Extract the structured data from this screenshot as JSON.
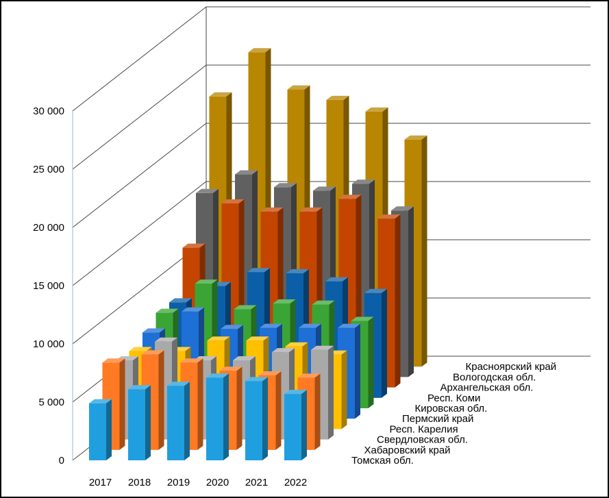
{
  "chart_data": {
    "type": "bar",
    "subtype": "3d-column",
    "title": "",
    "xlabel": "",
    "ylabel": "",
    "categories": [
      "2017",
      "2018",
      "2019",
      "2020",
      "2021",
      "2022"
    ],
    "yticks": [
      "0",
      "5 000",
      "10 000",
      "15 000",
      "20 000",
      "25 000",
      "30 000"
    ],
    "ylim": [
      0,
      30000
    ],
    "series": [
      {
        "name": "Томская обл.",
        "color": "#1f9fdf",
        "values": [
          4900,
          6100,
          6400,
          7100,
          6800,
          5700
        ]
      },
      {
        "name": "Хабаровский край",
        "color": "#ff7a22",
        "values": [
          7500,
          8200,
          7500,
          6800,
          6400,
          6200
        ]
      },
      {
        "name": "Свердловская обл.",
        "color": "#a9a9a9",
        "values": [
          6800,
          8400,
          6800,
          6800,
          7500,
          7700
        ]
      },
      {
        "name": "Респ. Карелия",
        "color": "#ffc000",
        "values": [
          6700,
          6700,
          7600,
          7600,
          7100,
          6400
        ]
      },
      {
        "name": "Пермский край",
        "color": "#1e6fd6",
        "values": [
          7400,
          9200,
          7700,
          7800,
          7800,
          7800
        ]
      },
      {
        "name": "Кировская обл.",
        "color": "#3aa535",
        "values": [
          8200,
          10700,
          8500,
          9000,
          8900,
          7500
        ]
      },
      {
        "name": "Респ. Коми",
        "color": "#0a5fa8",
        "values": [
          8200,
          9600,
          10800,
          10700,
          10000,
          9000
        ]
      },
      {
        "name": "Архангельская обл.",
        "color": "#c44500",
        "values": [
          12000,
          15800,
          15100,
          15100,
          16200,
          14500
        ]
      },
      {
        "name": "Вологодская обл.",
        "color": "#606060",
        "values": [
          15800,
          17400,
          16300,
          16000,
          16600,
          14300
        ]
      },
      {
        "name": "Красноярский край",
        "color": "#b88600",
        "values": [
          23200,
          27000,
          23800,
          22900,
          21900,
          19500
        ]
      }
    ],
    "grid": true,
    "legend": "depth-axis-labels-right"
  }
}
